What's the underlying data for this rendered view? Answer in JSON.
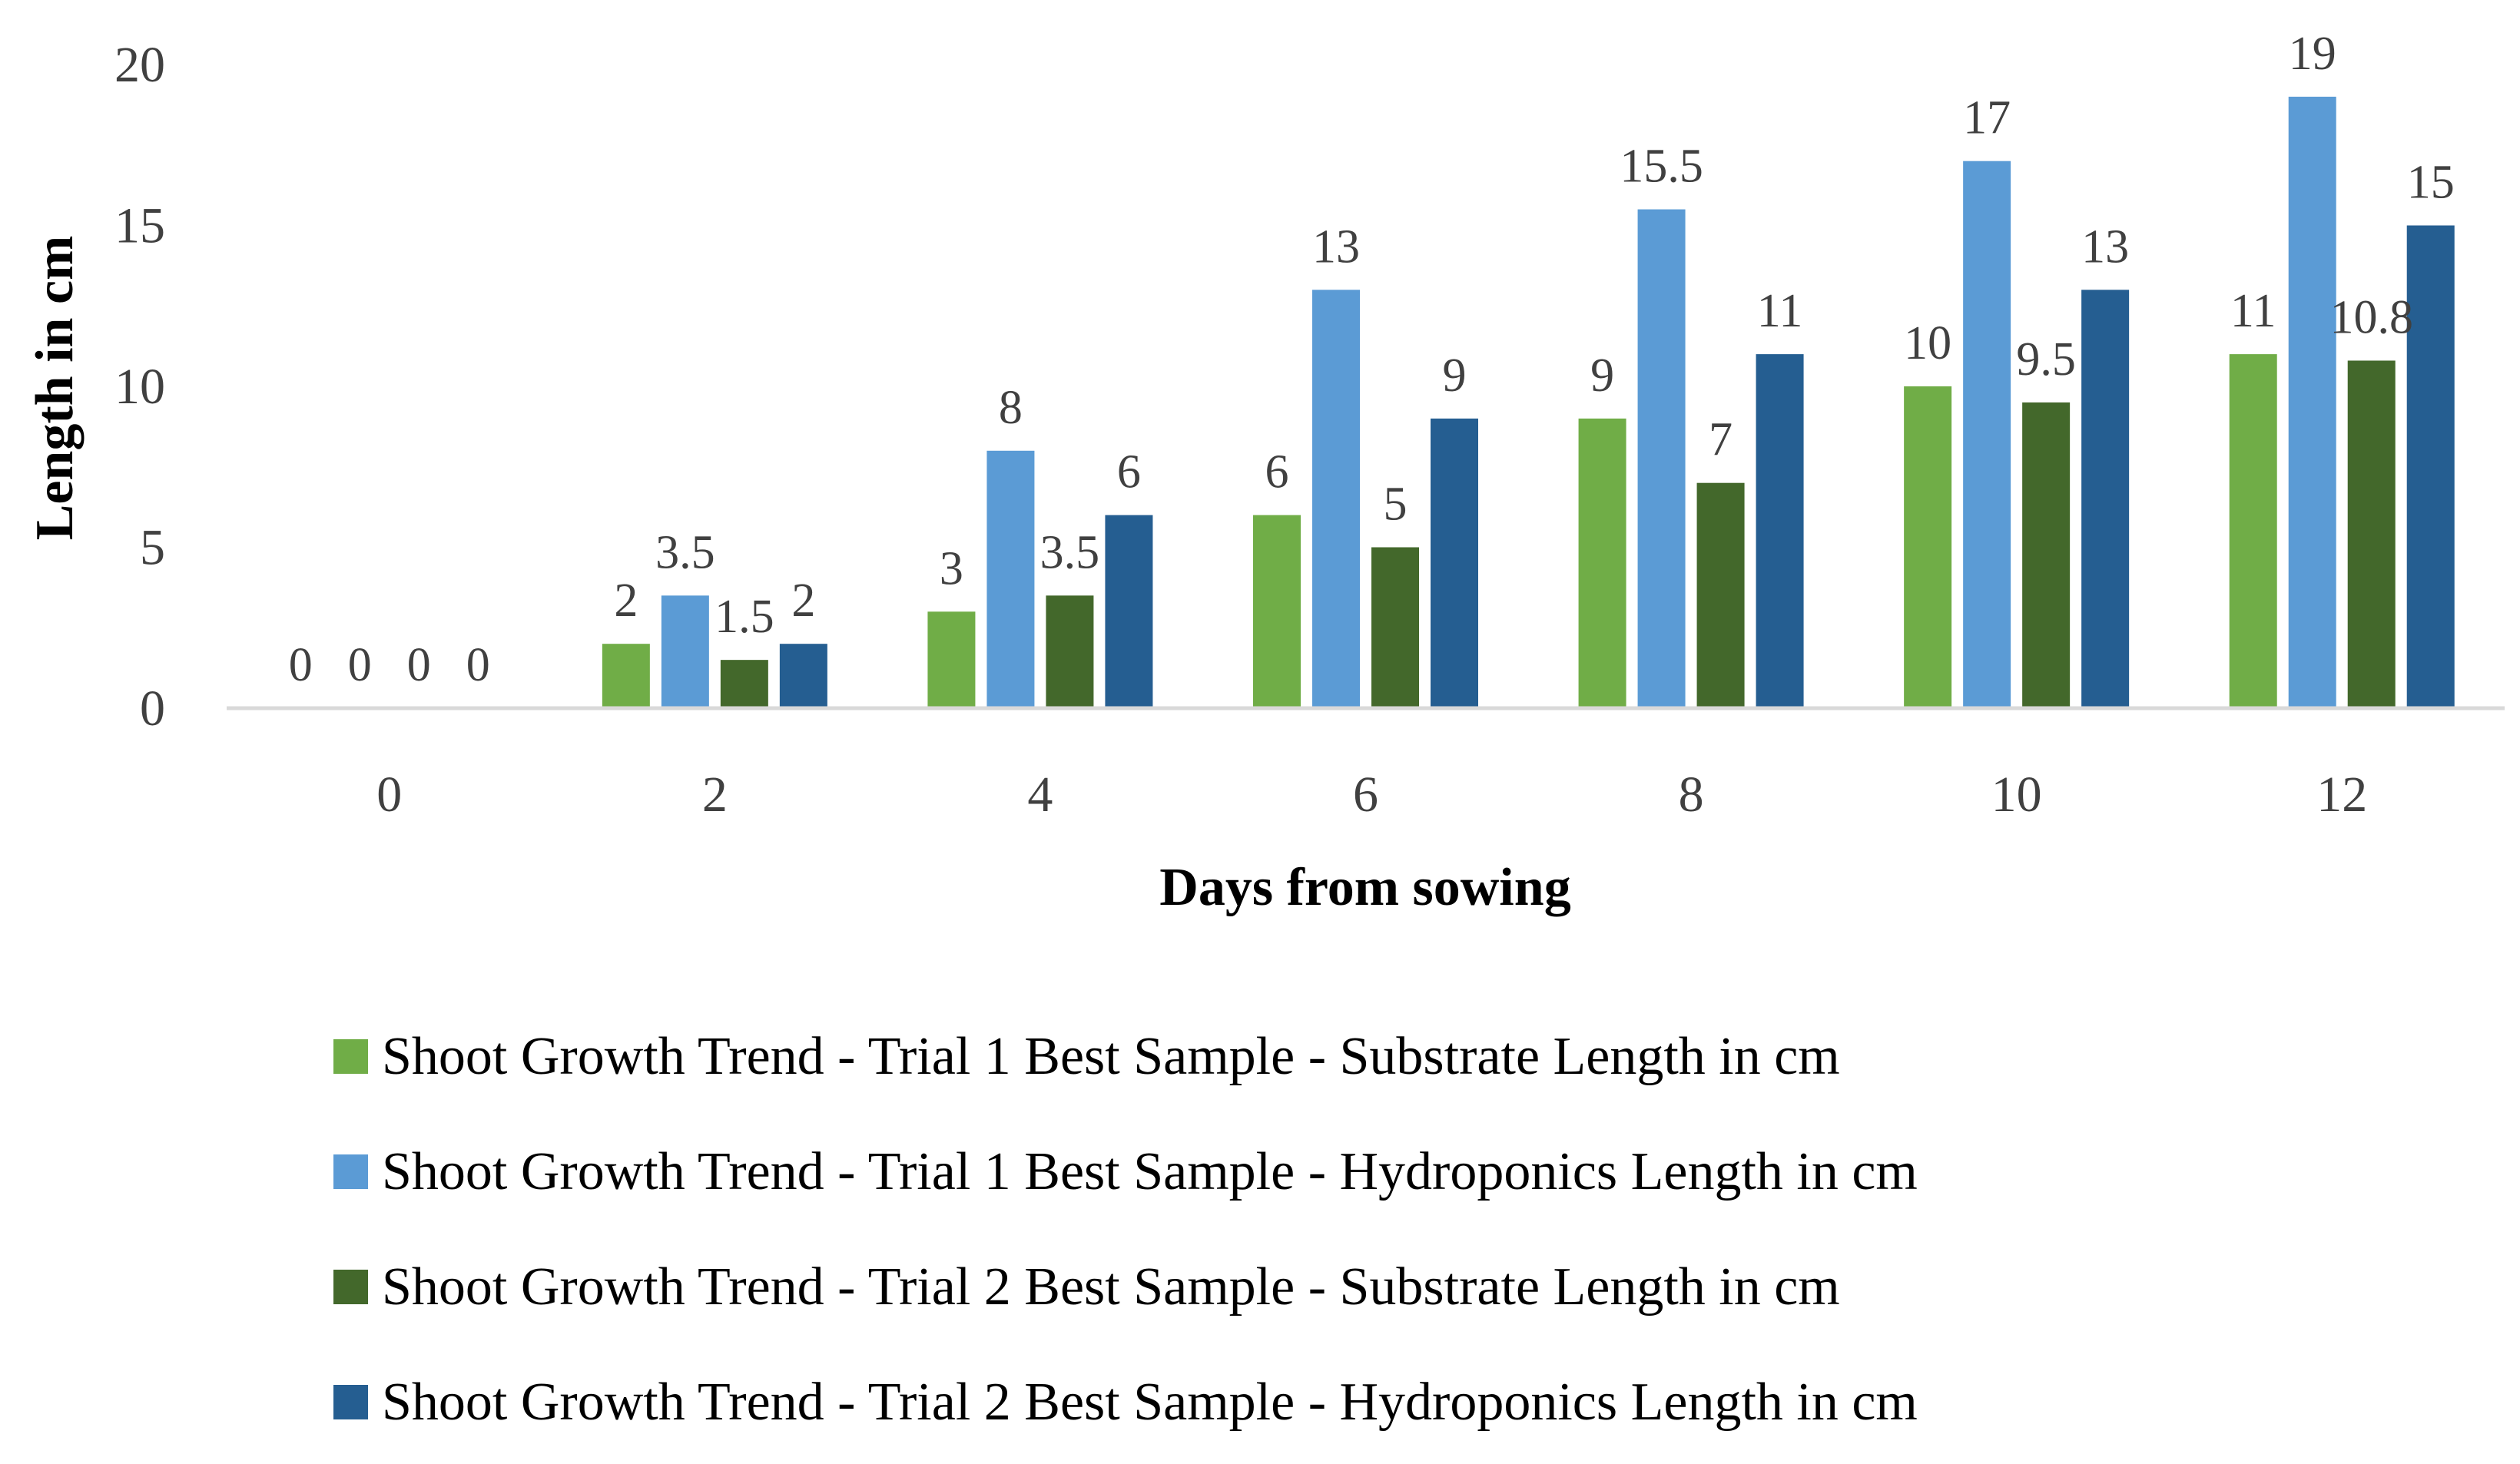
{
  "chart_data": {
    "type": "bar",
    "title": "",
    "xlabel": "Days from sowing",
    "ylabel": "Length in cm",
    "ylim": [
      0,
      20
    ],
    "yticks": [
      "0",
      "5",
      "10",
      "15",
      "20"
    ],
    "grid": false,
    "legend_position": "bottom",
    "categories": [
      "0",
      "2",
      "4",
      "6",
      "8",
      "10",
      "12"
    ],
    "series": [
      {
        "name": "Shoot Growth Trend - Trial 1  Best Sample - Substrate Length in cm",
        "color": "#70AD47",
        "values": [
          0,
          2,
          3,
          6,
          9,
          10,
          11
        ],
        "labels": [
          "0",
          "2",
          "3",
          "6",
          "9",
          "10",
          "11"
        ]
      },
      {
        "name": "Shoot Growth Trend - Trial 1  Best Sample - Hydroponics Length in cm",
        "color": "#5B9BD5",
        "values": [
          0,
          3.5,
          8,
          13,
          15.5,
          17,
          19
        ],
        "labels": [
          "0",
          "3.5",
          "8",
          "13",
          "15.5",
          "17",
          "19"
        ]
      },
      {
        "name": "Shoot Growth Trend - Trial 2 Best Sample - Substrate Length in cm",
        "color": "#43682B",
        "values": [
          0,
          1.5,
          3.5,
          5,
          7,
          9.5,
          10.8
        ],
        "labels": [
          "0",
          "1.5",
          "3.5",
          "5",
          "7",
          "9.5",
          "10.8"
        ]
      },
      {
        "name": "Shoot Growth Trend - Trial 2 Best Sample - Hydroponics Length in cm",
        "color": "#255E91",
        "values": [
          0,
          2,
          6,
          9,
          11,
          13,
          15
        ],
        "labels": [
          "0",
          "2",
          "6",
          "9",
          "11",
          "13",
          "15"
        ]
      }
    ]
  }
}
